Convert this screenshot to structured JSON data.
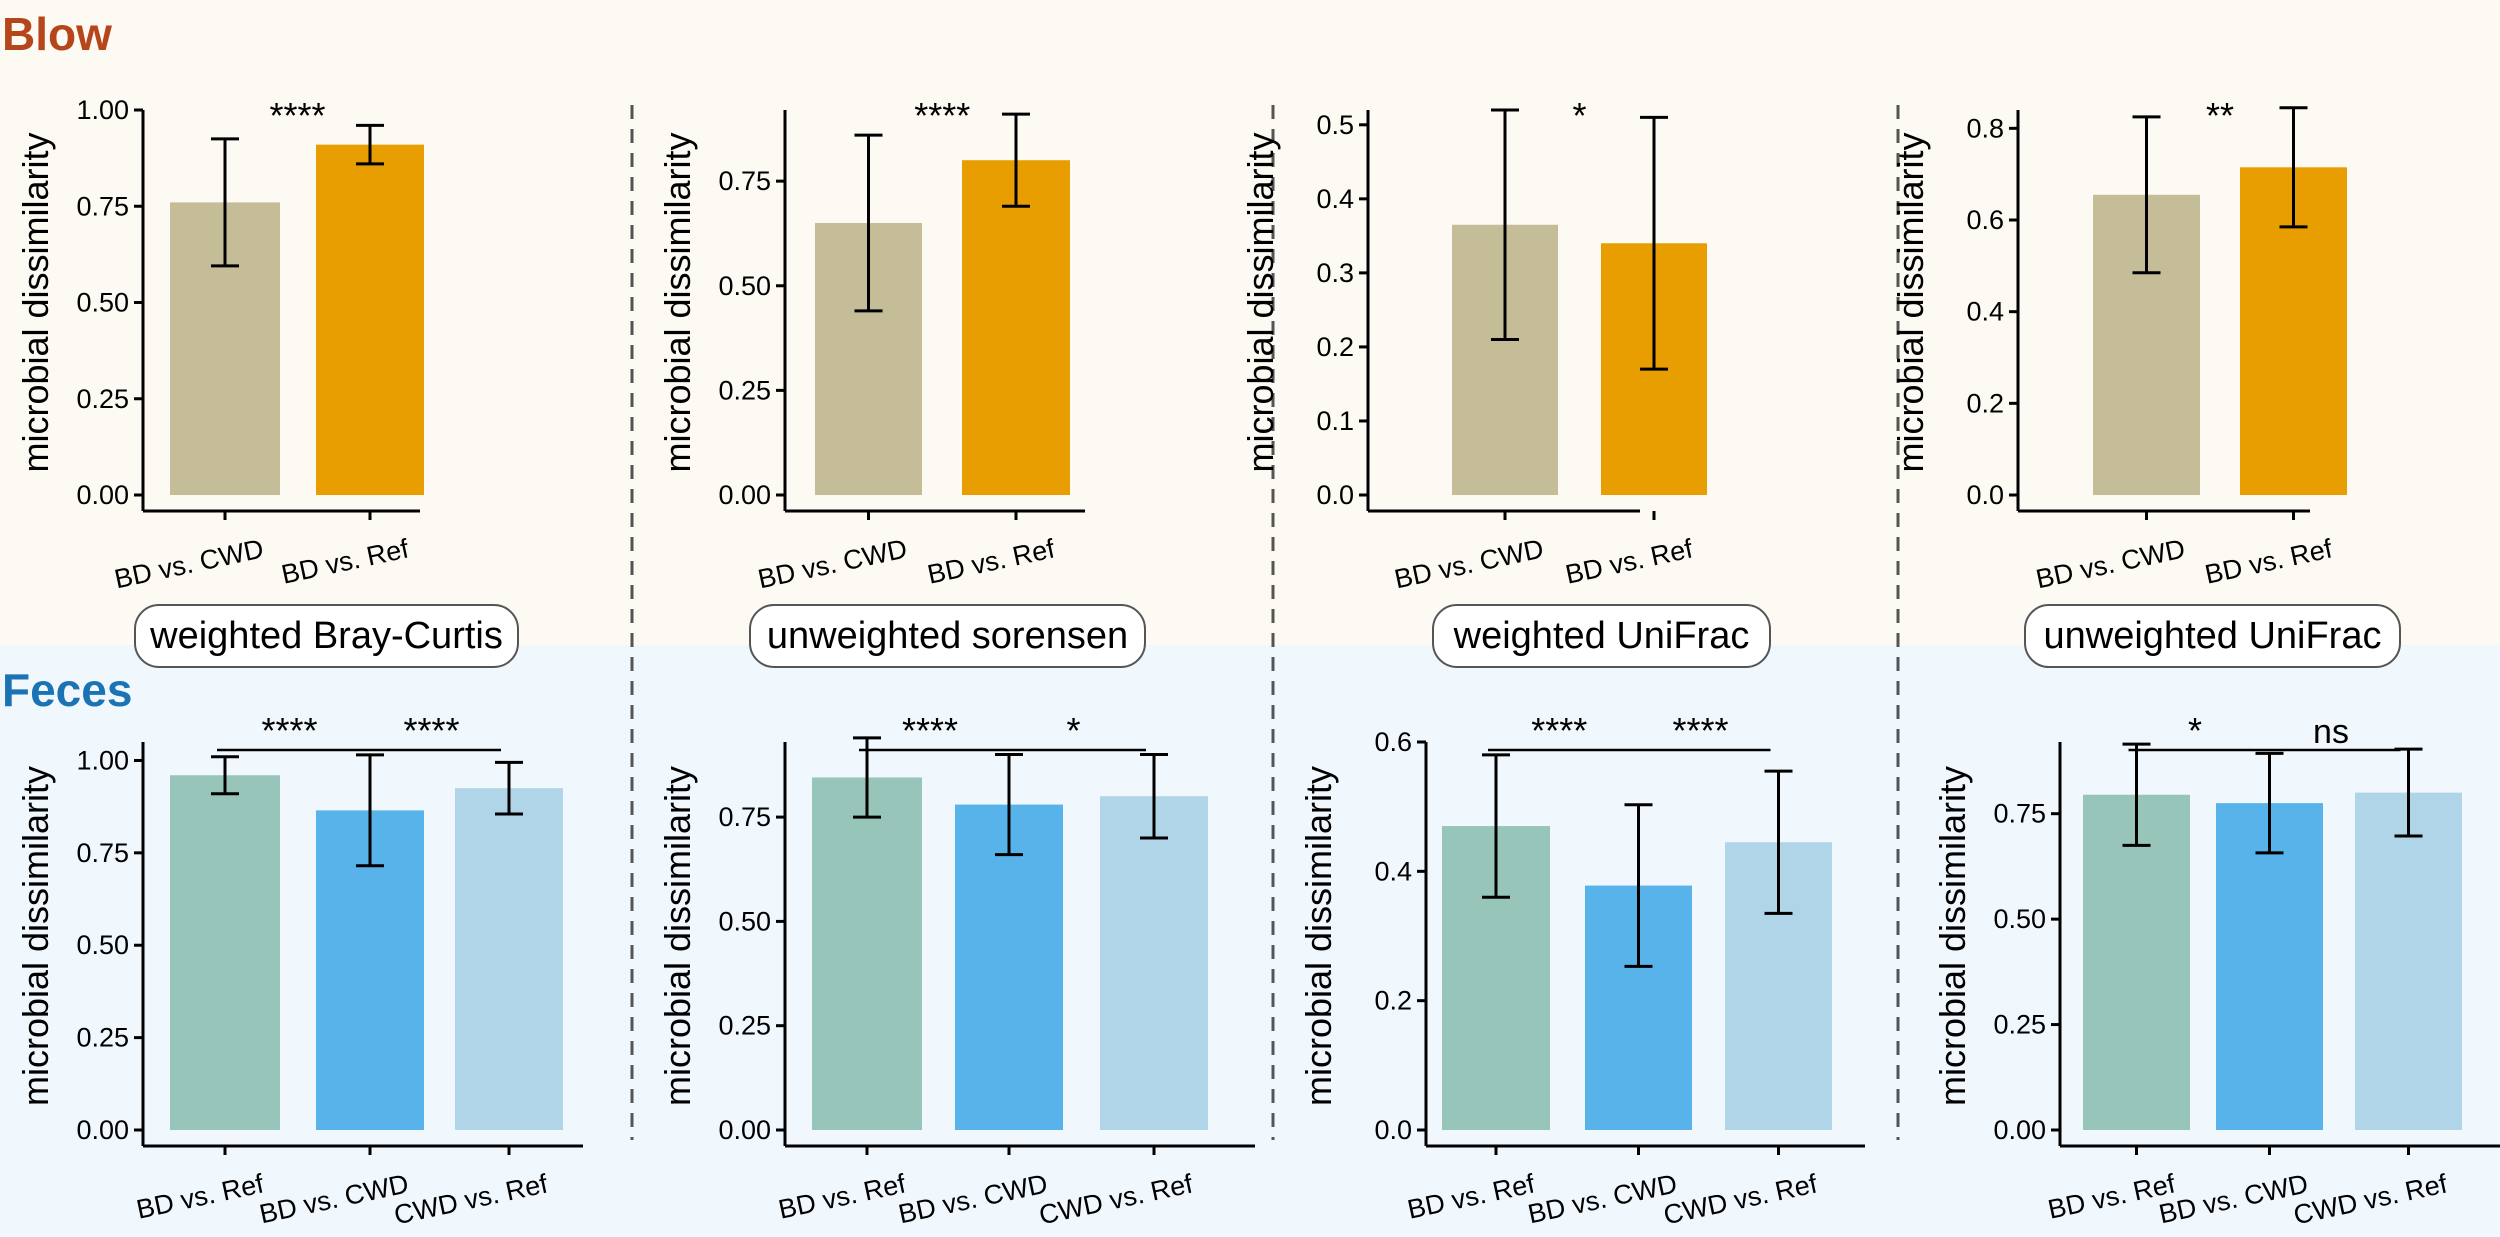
{
  "sections": {
    "blow": {
      "label": "Blow",
      "color": "#B5451B",
      "bg": "#FDF9F3"
    },
    "feces": {
      "label": "Feces",
      "color": "#1B73B3",
      "bg": "#F1F8FD"
    }
  },
  "panel_labels": [
    "weighted Bray-Curtis",
    "unweighted sorensen",
    "weighted UniFrac",
    "unweighted UniFrac"
  ],
  "chart_data": [
    {
      "type": "bar",
      "section": "Blow",
      "metric": "weighted Bray-Curtis",
      "ylabel": "microbial dissimilarity",
      "ylim": [
        0,
        1.0
      ],
      "yticks": [
        0,
        0.25,
        0.5,
        0.75,
        1.0
      ],
      "ytick_labels": [
        "0.00",
        "0.25",
        "0.50",
        "0.75",
        "1.00"
      ],
      "categories": [
        "BD vs. CWD",
        "BD vs. Ref"
      ],
      "values": [
        0.76,
        0.91
      ],
      "errors": [
        0.165,
        0.05
      ],
      "colors": [
        "#C4BD98",
        "#E89E00"
      ],
      "significance": [
        {
          "pair": [
            0,
            1
          ],
          "label": "****",
          "bracket": false
        }
      ]
    },
    {
      "type": "bar",
      "section": "Blow",
      "metric": "unweighted sorensen",
      "ylabel": "microbial dissimilarity",
      "ylim": [
        0,
        0.92
      ],
      "yticks": [
        0,
        0.25,
        0.5,
        0.75
      ],
      "ytick_labels": [
        "0.00",
        "0.25",
        "0.50",
        "0.75"
      ],
      "categories": [
        "BD vs. CWD",
        "BD vs. Ref"
      ],
      "values": [
        0.65,
        0.8
      ],
      "errors": [
        0.21,
        0.11
      ],
      "colors": [
        "#C4BD98",
        "#E89E00"
      ],
      "significance": [
        {
          "pair": [
            0,
            1
          ],
          "label": "****",
          "bracket": false
        }
      ]
    },
    {
      "type": "bar",
      "section": "Blow",
      "metric": "weighted UniFrac",
      "ylabel": "microbial dissimilarity",
      "ylim": [
        0,
        0.52
      ],
      "yticks": [
        0,
        0.1,
        0.2,
        0.3,
        0.4,
        0.5
      ],
      "ytick_labels": [
        "0.0",
        "0.1",
        "0.2",
        "0.3",
        "0.4",
        "0.5"
      ],
      "categories": [
        "BD vs. CWD",
        "BD vs. Ref"
      ],
      "values": [
        0.365,
        0.34
      ],
      "errors": [
        0.155,
        0.17
      ],
      "colors": [
        "#C4BD98",
        "#E89E00"
      ],
      "significance": [
        {
          "pair": [
            0,
            1
          ],
          "label": "*",
          "bracket": false
        }
      ]
    },
    {
      "type": "bar",
      "section": "Blow",
      "metric": "unweighted UniFrac",
      "ylabel": "microbial dissimilarity",
      "ylim": [
        0,
        0.84
      ],
      "yticks": [
        0,
        0.2,
        0.4,
        0.6,
        0.8
      ],
      "ytick_labels": [
        "0.0",
        "0.2",
        "0.4",
        "0.6",
        "0.8"
      ],
      "categories": [
        "BD vs. CWD",
        "BD vs. Ref"
      ],
      "values": [
        0.655,
        0.715
      ],
      "errors": [
        0.17,
        0.13
      ],
      "colors": [
        "#C4BD98",
        "#E89E00"
      ],
      "significance": [
        {
          "pair": [
            0,
            1
          ],
          "label": "**",
          "bracket": false
        }
      ]
    },
    {
      "type": "bar",
      "section": "Feces",
      "metric": "weighted Bray-Curtis",
      "ylabel": "microbial dissimilarity",
      "ylim": [
        0,
        1.05
      ],
      "yticks": [
        0,
        0.25,
        0.5,
        0.75,
        1.0
      ],
      "ytick_labels": [
        "0.00",
        "0.25",
        "0.50",
        "0.75",
        "1.00"
      ],
      "categories": [
        "BD vs. Ref",
        "BD vs. CWD",
        "CWD vs. Ref"
      ],
      "values": [
        0.96,
        0.865,
        0.925
      ],
      "errors": [
        0.05,
        0.15,
        0.07
      ],
      "colors": [
        "#97C5B9",
        "#57B3EA",
        "#B0D4E8"
      ],
      "significance": [
        {
          "pair": [
            0,
            1
          ],
          "label": "****",
          "bracket": true
        },
        {
          "pair": [
            1,
            2
          ],
          "label": "****",
          "bracket": true
        }
      ]
    },
    {
      "type": "bar",
      "section": "Feces",
      "metric": "unweighted sorensen",
      "ylabel": "microbial dissimilarity",
      "ylim": [
        0,
        0.93
      ],
      "yticks": [
        0,
        0.25,
        0.5,
        0.75
      ],
      "ytick_labels": [
        "0.00",
        "0.25",
        "0.50",
        "0.75"
      ],
      "categories": [
        "BD vs. Ref",
        "BD vs. CWD",
        "CWD vs. Ref"
      ],
      "values": [
        0.845,
        0.78,
        0.8
      ],
      "errors": [
        0.095,
        0.12,
        0.1
      ],
      "colors": [
        "#97C5B9",
        "#57B3EA",
        "#B0D4E8"
      ],
      "significance": [
        {
          "pair": [
            0,
            1
          ],
          "label": "****",
          "bracket": true
        },
        {
          "pair": [
            1,
            2
          ],
          "label": "*",
          "bracket": true
        }
      ]
    },
    {
      "type": "bar",
      "section": "Feces",
      "metric": "weighted UniFrac",
      "ylabel": "microbial dissimilarity",
      "ylim": [
        0,
        0.6
      ],
      "yticks": [
        0,
        0.2,
        0.4,
        0.6
      ],
      "ytick_labels": [
        "0.0",
        "0.2",
        "0.4",
        "0.6"
      ],
      "categories": [
        "BD vs. Ref",
        "BD vs. CWD",
        "CWD vs. Ref"
      ],
      "values": [
        0.47,
        0.378,
        0.445
      ],
      "errors": [
        0.11,
        0.125,
        0.11
      ],
      "colors": [
        "#97C5B9",
        "#57B3EA",
        "#B0D4E8"
      ],
      "significance": [
        {
          "pair": [
            0,
            1
          ],
          "label": "****",
          "bracket": true
        },
        {
          "pair": [
            1,
            2
          ],
          "label": "****",
          "bracket": true
        }
      ]
    },
    {
      "type": "bar",
      "section": "Feces",
      "metric": "unweighted UniFrac",
      "ylabel": "microbial dissimilarity",
      "ylim": [
        0,
        0.92
      ],
      "yticks": [
        0,
        0.25,
        0.5,
        0.75
      ],
      "ytick_labels": [
        "0.00",
        "0.25",
        "0.50",
        "0.75"
      ],
      "categories": [
        "BD vs. Ref",
        "BD vs. CWD",
        "CWD vs. Ref"
      ],
      "values": [
        0.795,
        0.775,
        0.8
      ],
      "errors": [
        0.12,
        0.118,
        0.103
      ],
      "colors": [
        "#97C5B9",
        "#57B3EA",
        "#B0D4E8"
      ],
      "significance": [
        {
          "pair": [
            0,
            1
          ],
          "label": "*",
          "bracket": true
        },
        {
          "pair": [
            1,
            2
          ],
          "label": "ns",
          "bracket": true
        }
      ]
    }
  ]
}
